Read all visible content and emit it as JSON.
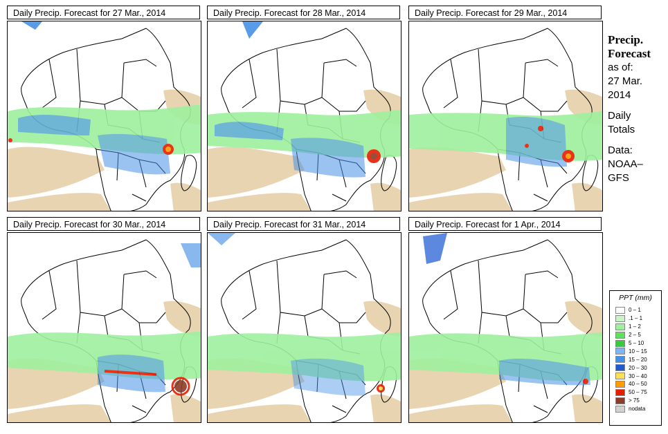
{
  "panels": [
    {
      "title": "Daily Precip. Forecast for  27 Mar., 2014"
    },
    {
      "title": "Daily Precip. Forecast for  28 Mar., 2014"
    },
    {
      "title": "Daily Precip. Forecast for  29 Mar., 2014"
    },
    {
      "title": "Daily Precip. Forecast for  30 Mar., 2014"
    },
    {
      "title": "Daily Precip. Forecast for  31 Mar., 2014"
    },
    {
      "title": "Daily Precip. Forecast for  1 Apr., 2014"
    }
  ],
  "side": {
    "title_line1": "Precip.",
    "title_line2": "Forecast",
    "asof_line1": "as of:",
    "asof_line2": "27 Mar.",
    "asof_line3": "2014",
    "totals_line1": "Daily",
    "totals_line2": "Totals",
    "data_line1": "Data:",
    "data_line2": "NOAA–",
    "data_line3": "GFS"
  },
  "legend": {
    "title": "PPT (mm)",
    "items": [
      {
        "label": "0 – 1",
        "color": "#ffffff"
      },
      {
        "label": ".1 – 1",
        "color": "#c8f5c8"
      },
      {
        "label": "1 – 2",
        "color": "#9ef09e"
      },
      {
        "label": "2 – 5",
        "color": "#5fe05f"
      },
      {
        "label": "5 – 10",
        "color": "#3cc83c"
      },
      {
        "label": "10 – 15",
        "color": "#82b4f0"
      },
      {
        "label": "15 – 20",
        "color": "#4690e6"
      },
      {
        "label": "20 – 30",
        "color": "#1e5ad2"
      },
      {
        "label": "30 – 40",
        "color": "#ffe05a"
      },
      {
        "label": "40 – 50",
        "color": "#ff9a00"
      },
      {
        "label": "50 – 75",
        "color": "#e61e00"
      },
      {
        "label": "> 75",
        "color": "#8c3c28"
      },
      {
        "label": "nodata",
        "color": "#d2d2d2"
      }
    ]
  },
  "colors": {
    "desert": "#e8d4b0"
  }
}
